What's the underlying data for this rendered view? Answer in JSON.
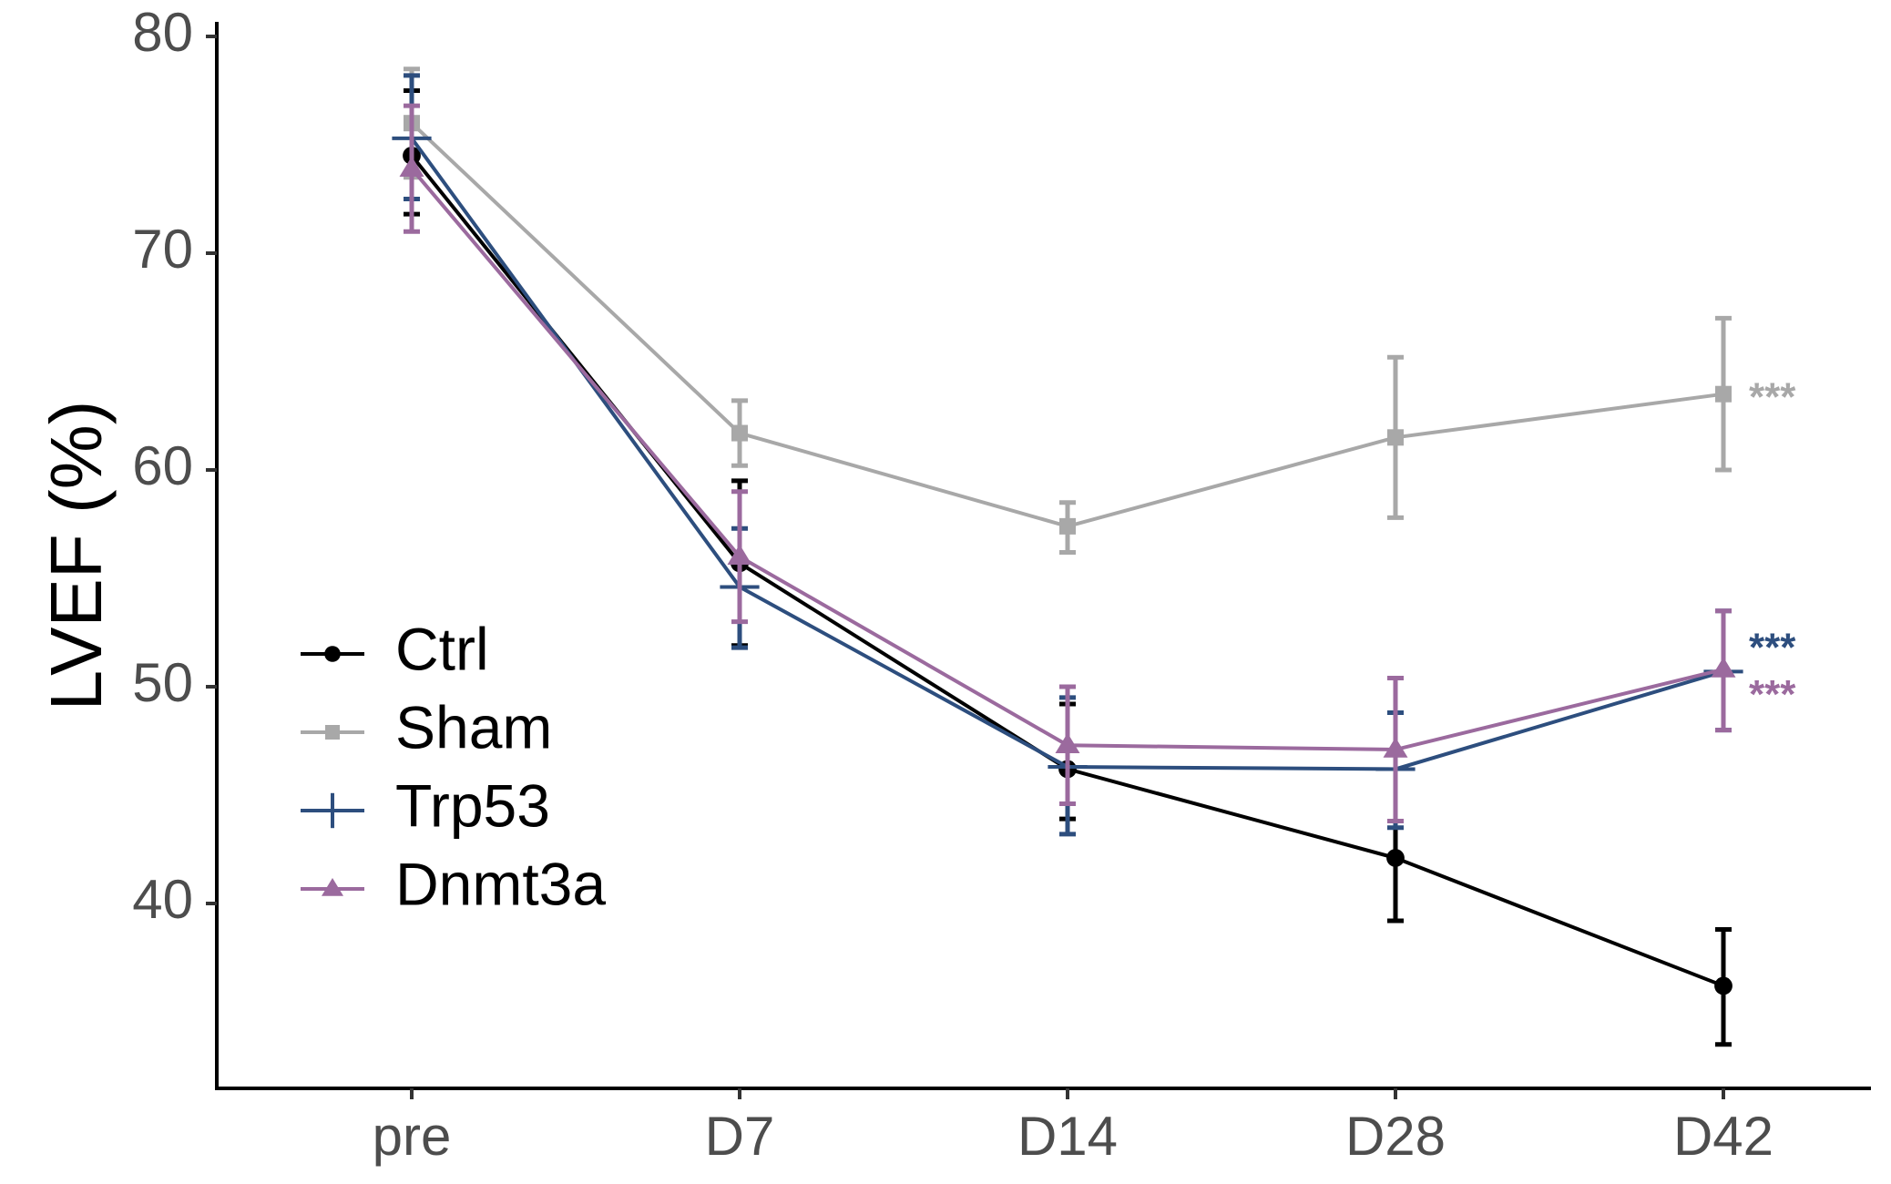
{
  "chart_data": {
    "type": "line",
    "title": "",
    "xlabel": "",
    "ylabel": "LVEF (%)",
    "categories": [
      "pre",
      "D7",
      "D14",
      "D28",
      "D42"
    ],
    "ylim": [
      30,
      81
    ],
    "yticks": [
      40,
      50,
      60,
      70,
      80
    ],
    "grid": false,
    "legend_position": "bottom-left",
    "error_bars": true,
    "series": [
      {
        "name": "Ctrl",
        "color": "#000000",
        "marker": "circle",
        "values": [
          74.5,
          55.7,
          46.2,
          42.1,
          36.2
        ],
        "err_low": [
          71.8,
          51.9,
          43.9,
          39.2,
          33.5
        ],
        "err_high": [
          77.5,
          59.5,
          49.2,
          43.8,
          38.8
        ]
      },
      {
        "name": "Sham",
        "color": "#a8a8a8",
        "marker": "square",
        "values": [
          76.0,
          61.7,
          57.4,
          61.5,
          63.5
        ],
        "err_low": [
          73.5,
          60.2,
          56.2,
          57.8,
          60.0
        ],
        "err_high": [
          78.5,
          63.2,
          58.5,
          65.2,
          67.0
        ],
        "annotation": "***"
      },
      {
        "name": "Trp53",
        "color": "#2d4e7e",
        "marker": "plus",
        "values": [
          75.3,
          54.6,
          46.3,
          46.2,
          50.7
        ],
        "err_low": [
          72.5,
          51.8,
          43.2,
          43.5,
          48.0
        ],
        "err_high": [
          78.2,
          57.3,
          49.5,
          48.8,
          53.5
        ],
        "annotation": "***"
      },
      {
        "name": "Dnmt3a",
        "color": "#9b6a9e",
        "marker": "triangle",
        "values": [
          73.9,
          56.0,
          47.3,
          47.1,
          50.8
        ],
        "err_low": [
          71.0,
          53.0,
          44.6,
          43.8,
          48.0
        ],
        "err_high": [
          76.8,
          59.0,
          50.0,
          50.4,
          53.5
        ],
        "annotation": "***"
      }
    ]
  }
}
